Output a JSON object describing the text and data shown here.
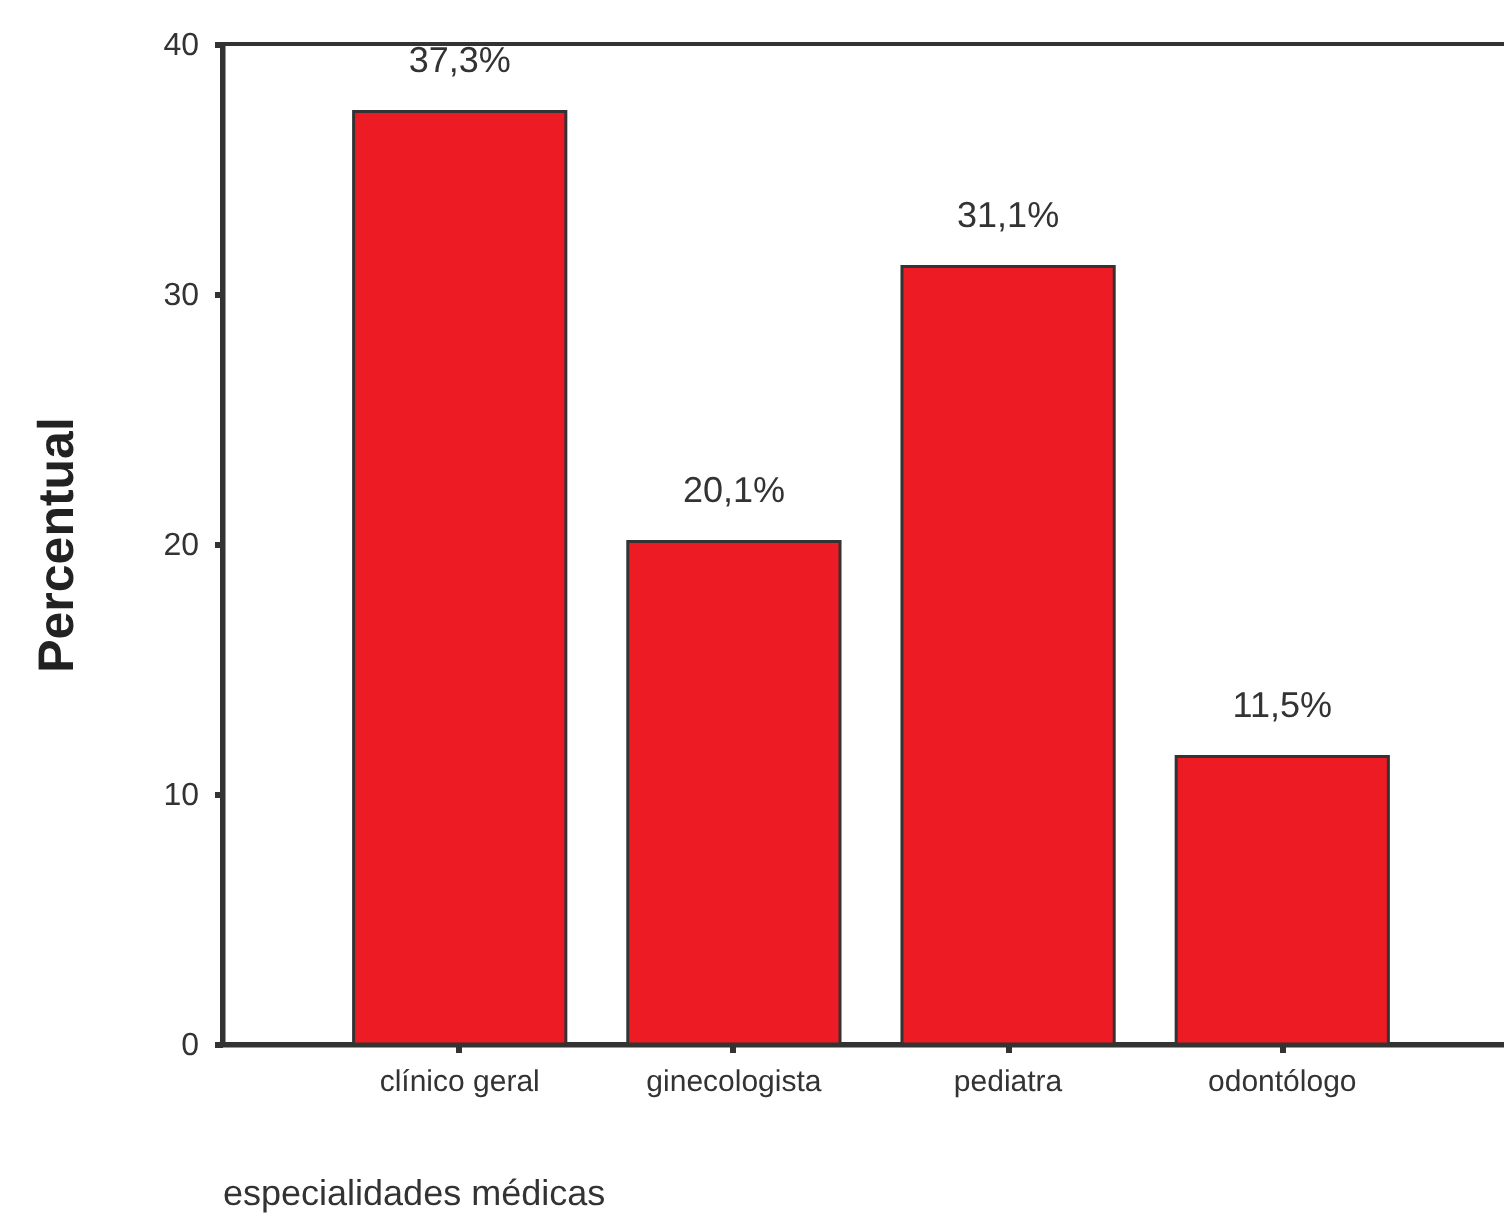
{
  "chart_data": {
    "type": "bar",
    "xlabel": "especialidades médicas",
    "ylabel": "Percentual",
    "categories": [
      "clínico geral",
      "ginecologista",
      "pediatra",
      "odontólogo"
    ],
    "values": [
      37.3,
      20.1,
      31.1,
      11.5
    ],
    "value_labels": [
      "37,3%",
      "20,1%",
      "31,1%",
      "11,5%"
    ],
    "color": "#ed1c24",
    "ylim": [
      0,
      40
    ],
    "yticks": [
      0,
      10,
      20,
      30,
      40
    ]
  }
}
